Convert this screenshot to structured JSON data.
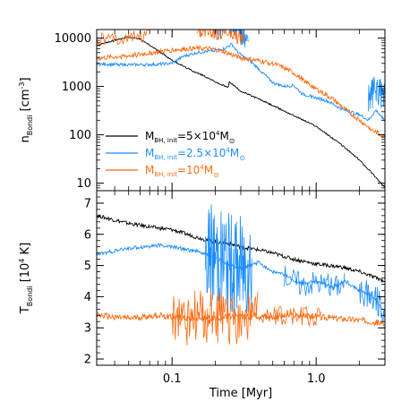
{
  "chart_data": [
    {
      "type": "line",
      "panel": "top",
      "ylabel": "n_Bondi [cm^-3]",
      "ylabel_parts": {
        "main": "n",
        "sub": "Bondi",
        "unit": "[cm",
        "unit_sup": "-3",
        "unit_close": "]"
      },
      "xscale": "log",
      "yscale": "log",
      "xlim": [
        0.03,
        3.0
      ],
      "ylim": [
        7,
        15000
      ],
      "yticks": [
        10,
        100,
        1000,
        10000
      ],
      "ytick_labels": [
        "10",
        "100",
        "1000",
        "10000"
      ],
      "legend": {
        "placement": "lower-left",
        "entries": [
          {
            "prefix": "M",
            "sub": "BH, init",
            "eq": "=5×10",
            "sup": "4",
            "m": "M",
            "msub": "⊙",
            "color": "#000000"
          },
          {
            "prefix": "M",
            "sub": "BH, init",
            "eq": "=2.5×10",
            "sup": "4",
            "m": "M",
            "msub": "⊙",
            "color": "#1a8cff"
          },
          {
            "prefix": "M",
            "sub": "BH, init",
            "eq": "=10",
            "sup": "4",
            "m": "M",
            "msub": "⊙",
            "color": "#ff6a10"
          }
        ]
      },
      "series": [
        {
          "color": "#000000",
          "noise": 0.015,
          "x": [
            0.03,
            0.04,
            0.05,
            0.06,
            0.08,
            0.1,
            0.13,
            0.17,
            0.21,
            0.245,
            0.25,
            0.3,
            0.4,
            0.5,
            0.7,
            1.0,
            1.5,
            2.0,
            2.5,
            3.0
          ],
          "y": [
            7000,
            9000,
            10500,
            9500,
            5500,
            3500,
            2300,
            1600,
            1150,
            950,
            1250,
            800,
            550,
            400,
            250,
            150,
            62,
            30,
            15,
            8
          ]
        },
        {
          "color": "#1a8cff",
          "noise": 0.03,
          "x": [
            0.03,
            0.05,
            0.08,
            0.1,
            0.12,
            0.15,
            0.2,
            0.23,
            0.26,
            0.28,
            0.3,
            0.35,
            0.4,
            0.5,
            0.6,
            0.7,
            0.8,
            1.0,
            1.2,
            1.5,
            2.0,
            2.3,
            2.6,
            3.0
          ],
          "y": [
            2900,
            2800,
            2850,
            3000,
            4200,
            5000,
            5600,
            6000,
            7500,
            5500,
            4500,
            3300,
            2300,
            1200,
            1000,
            1050,
            700,
            580,
            500,
            340,
            260,
            200,
            320,
            200
          ],
          "spikes": [
            {
              "x0": 0.2,
              "x1": 0.34,
              "lo": 0.55,
              "hi": 1.8,
              "n": 90
            },
            {
              "x0": 2.3,
              "x1": 3.0,
              "lo": 0.35,
              "hi": 2.2,
              "n": 40
            }
          ]
        },
        {
          "color": "#ff6a10",
          "noise": 0.05,
          "x": [
            0.03,
            0.04,
            0.05,
            0.06,
            0.08,
            0.1,
            0.13,
            0.15,
            0.18,
            0.2,
            0.23,
            0.26,
            0.3,
            0.35,
            0.4,
            0.5,
            0.6,
            0.7,
            0.8,
            1.0,
            1.3,
            1.6,
            2.0,
            2.5,
            3.0
          ],
          "y": [
            3800,
            4100,
            4300,
            4600,
            5200,
            5700,
            6000,
            6100,
            6000,
            5800,
            5200,
            4500,
            3900,
            3600,
            3400,
            3000,
            2400,
            1900,
            1400,
            900,
            550,
            330,
            200,
            120,
            90
          ],
          "spikes": [
            {
              "x0": 0.03,
              "x1": 0.07,
              "lo": 0.7,
              "hi": 1.5,
              "n": 40
            },
            {
              "x0": 0.15,
              "x1": 0.32,
              "lo": 0.6,
              "hi": 1.6,
              "n": 80
            }
          ]
        }
      ]
    },
    {
      "type": "line",
      "panel": "bottom",
      "xlabel": "Time [Myr]",
      "ylabel": "T_Bondi [10^4 K]",
      "ylabel_parts": {
        "main": "T",
        "sub": "Bondi",
        "unit": "[10",
        "unit_sup": "4",
        "unit_close": " K]"
      },
      "xscale": "log",
      "yscale": "linear",
      "xlim": [
        0.03,
        3.0
      ],
      "ylim": [
        1.8,
        7.4
      ],
      "yticks": [
        2,
        3,
        4,
        5,
        6,
        7
      ],
      "ytick_labels": [
        "2",
        "3",
        "4",
        "5",
        "6",
        "7"
      ],
      "xticks": [
        0.1,
        1.0
      ],
      "xtick_labels": [
        "0.1",
        "1.0"
      ],
      "series": [
        {
          "color": "#000000",
          "noise": 0.06,
          "x": [
            0.03,
            0.05,
            0.08,
            0.1,
            0.15,
            0.2,
            0.25,
            0.3,
            0.4,
            0.5,
            0.7,
            1.0,
            1.5,
            2.0,
            3.0
          ],
          "y": [
            6.6,
            6.35,
            6.2,
            6.15,
            5.9,
            5.75,
            5.7,
            5.6,
            5.5,
            5.4,
            5.2,
            5.05,
            4.95,
            4.8,
            4.5
          ]
        },
        {
          "color": "#1a8cff",
          "noise": 0.06,
          "x": [
            0.03,
            0.05,
            0.08,
            0.1,
            0.15,
            0.2,
            0.25,
            0.3,
            0.35,
            0.4,
            0.5,
            0.6,
            0.8,
            1.0,
            1.3,
            1.6,
            2.0,
            2.5,
            3.0
          ],
          "y": [
            5.35,
            5.55,
            5.65,
            5.6,
            5.45,
            5.25,
            5.0,
            4.9,
            5.0,
            5.1,
            4.8,
            4.7,
            4.4,
            4.5,
            4.3,
            4.5,
            4.2,
            4.0,
            3.5
          ],
          "spikes": [
            {
              "x0": 0.17,
              "x1": 0.36,
              "lo": -1.7,
              "hi": 1.7,
              "n": 110
            },
            {
              "x0": 0.6,
              "x1": 1.6,
              "lo": -0.4,
              "hi": 0.4,
              "n": 60
            },
            {
              "x0": 2.0,
              "x1": 3.0,
              "lo": -0.5,
              "hi": 0.5,
              "n": 40
            }
          ]
        },
        {
          "color": "#ff6a10",
          "noise": 0.1,
          "x": [
            0.03,
            0.05,
            0.08,
            0.1,
            0.15,
            0.2,
            0.25,
            0.3,
            0.4,
            0.5,
            0.7,
            1.0,
            1.5,
            2.0,
            2.5,
            3.0
          ],
          "y": [
            3.4,
            3.3,
            3.4,
            3.35,
            3.3,
            3.3,
            3.35,
            3.35,
            3.4,
            3.35,
            3.4,
            3.35,
            3.3,
            3.25,
            3.2,
            3.1
          ],
          "spikes": [
            {
              "x0": 0.1,
              "x1": 0.4,
              "lo": -0.9,
              "hi": 0.9,
              "n": 110
            },
            {
              "x0": 0.4,
              "x1": 1.1,
              "lo": -0.35,
              "hi": 0.35,
              "n": 60
            }
          ]
        }
      ]
    }
  ]
}
